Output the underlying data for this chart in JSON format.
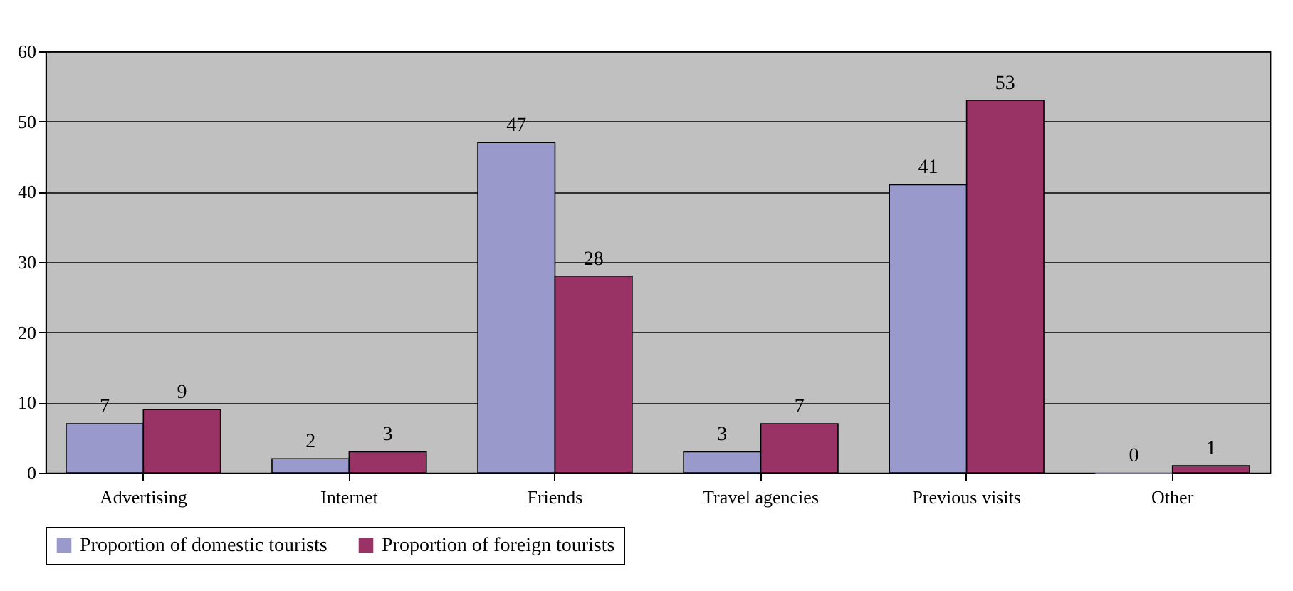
{
  "chart_data": {
    "type": "bar",
    "categories": [
      "Advertising",
      "Internet",
      "Friends",
      "Travel agencies",
      "Previous visits",
      "Other"
    ],
    "series": [
      {
        "name": "Proportion of domestic tourists",
        "color": "#9999cc",
        "values": [
          7,
          2,
          47,
          3,
          41,
          0
        ]
      },
      {
        "name": "Proportion of foreign tourists",
        "color": "#993366",
        "values": [
          9,
          3,
          28,
          7,
          53,
          1
        ]
      }
    ],
    "ylim": [
      0,
      60
    ],
    "yticks": [
      0,
      10,
      20,
      30,
      40,
      50,
      60
    ],
    "grid": "y",
    "legend": "bottom",
    "data_labels": true
  }
}
